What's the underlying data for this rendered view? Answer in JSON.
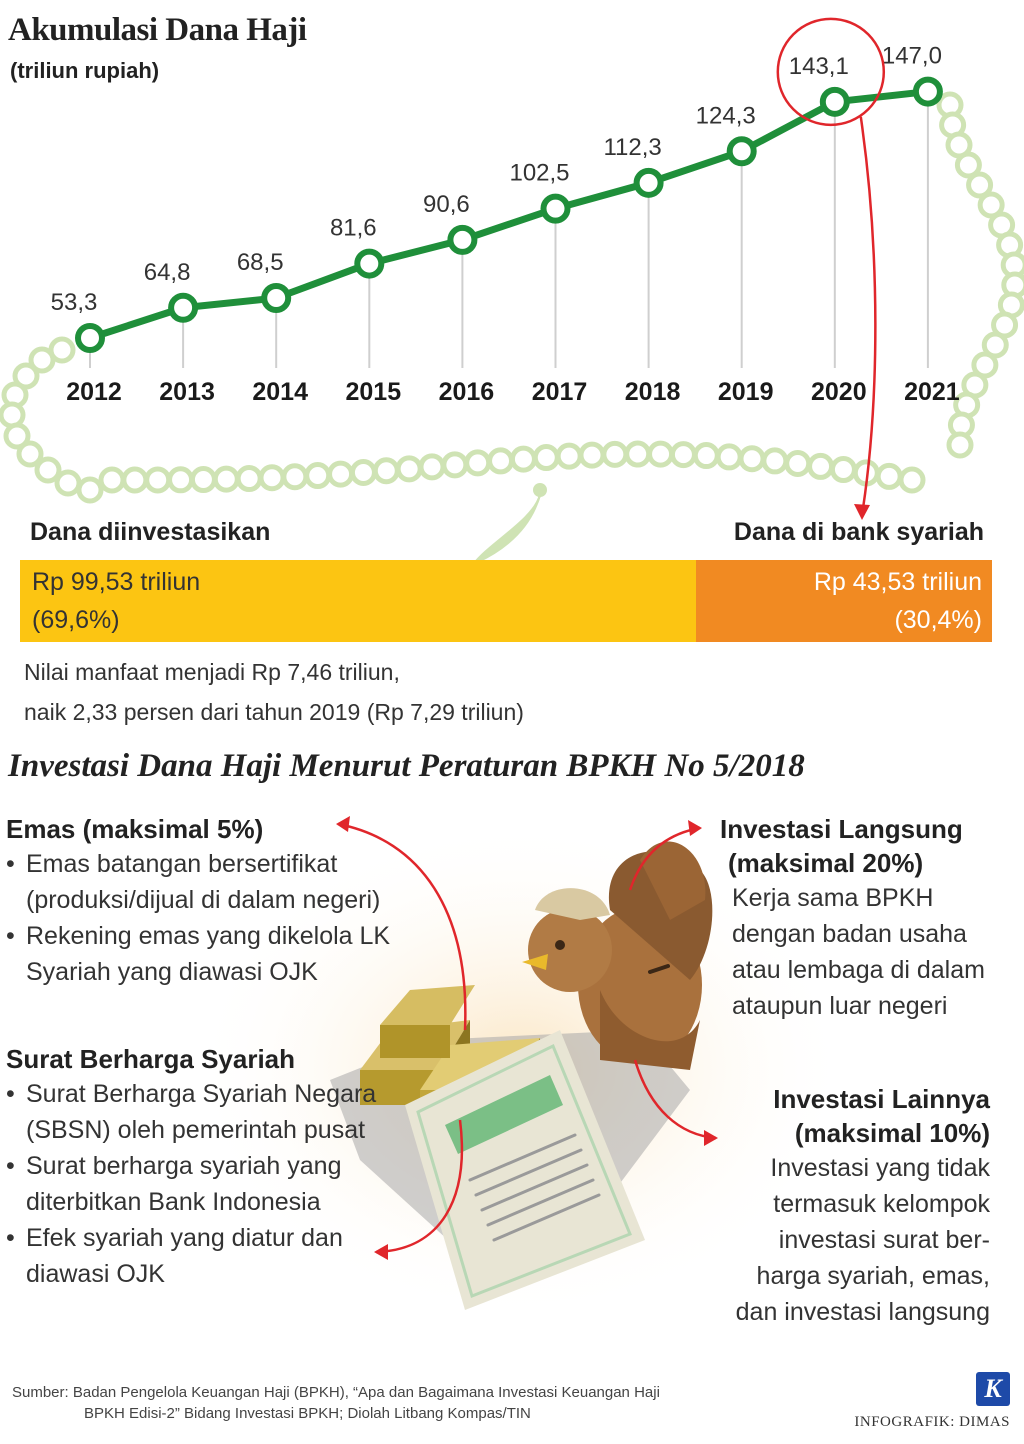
{
  "header": {
    "title": "Akumulasi Dana Haji",
    "subtitle": "(triliun rupiah)"
  },
  "chart_data": {
    "type": "line",
    "title": "Akumulasi Dana Haji",
    "ylabel": "(triliun rupiah)",
    "categories": [
      "2012",
      "2013",
      "2014",
      "2015",
      "2016",
      "2017",
      "2018",
      "2019",
      "2020",
      "2021"
    ],
    "values": [
      53.3,
      64.8,
      68.5,
      81.6,
      90.6,
      102.5,
      112.3,
      124.3,
      143.1,
      147.0
    ],
    "value_labels": [
      "53,3",
      "64,8",
      "68,5",
      "81,6",
      "90,6",
      "102,5",
      "112,3",
      "124,3",
      "143,1",
      "147,0"
    ],
    "highlight": "2020",
    "line_color": "#1f8f3a",
    "grid": false
  },
  "allocation": {
    "invested": {
      "heading": "Dana diinvestasikan",
      "amount": "Rp 99,53 triliun",
      "share": "(69,6%)",
      "percent": 69.6,
      "color": "#fcc512"
    },
    "bank": {
      "heading": "Dana di bank syariah",
      "amount": "Rp 43,53 triliun",
      "share": "(30,4%)",
      "percent": 30.4,
      "color": "#f18a22"
    },
    "benefit_line1": "Nilai manfaat menjadi Rp 7,46 triliun,",
    "benefit_line2": "naik 2,33 persen dari tahun 2019 (Rp 7,29 triliun)"
  },
  "regulation": {
    "title": "Investasi Dana Haji Menurut Peraturan BPKH No 5/2018",
    "emas": {
      "heading": "Emas (maksimal 5%)",
      "items": [
        "Emas batangan bersertifikat (produksi/dijual di dalam negeri)",
        "Rekening emas yang dikelola LK Syariah yang diawasi OJK"
      ]
    },
    "surat_berharga": {
      "heading": "Surat Berharga Syariah",
      "items": [
        "Surat Berharga Syariah Negara (SBSN) oleh pemerintah pusat",
        "Surat berharga syariah yang diterbitkan Bank Indonesia",
        "Efek syariah yang diatur dan diawasi OJK"
      ]
    },
    "langsung": {
      "heading_line1": "Investasi Langsung",
      "heading_line2": "(maksimal 20%)",
      "body": [
        "Kerja sama BPKH",
        "dengan badan usaha",
        "atau lembaga di dalam",
        "ataupun luar negeri"
      ]
    },
    "lainnya": {
      "heading_line1": "Investasi Lainnya",
      "heading_line2": "(maksimal 10%)",
      "body": [
        "Investasi yang tidak",
        "termasuk kelompok",
        "investasi surat ber-",
        "harga syariah, emas,",
        "dan investasi langsung"
      ]
    }
  },
  "footer": {
    "source_line1": "Sumber: Badan Pengelola Keuangan Haji (BPKH), “Apa dan Bagaimana Investasi Keuangan Haji",
    "source_line2": "BPKH Edisi-2” Bidang Investasi BPKH; Diolah Litbang Kompas/TIN",
    "logo_letter": "K",
    "credit": "INFOGRAFIK: DIMAS"
  },
  "colors": {
    "green": "#1f8f3a",
    "bead": "#cfe3b4",
    "red": "#e0262b",
    "gold": "#fcc512",
    "orange": "#f18a22"
  }
}
